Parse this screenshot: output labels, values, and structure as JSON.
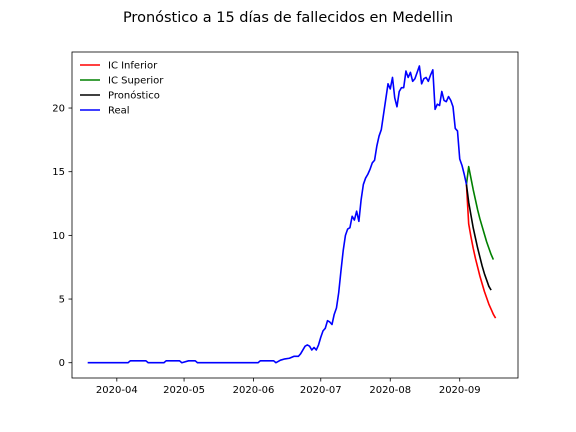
{
  "chart_data": {
    "type": "line",
    "title": "Pronóstico a 15 días de fallecidos en Medellin",
    "xlabel": "",
    "ylabel": "",
    "x_range": [
      "2020-03-12",
      "2020-09-27"
    ],
    "ylim": [
      -1.2,
      24.4
    ],
    "x_ticks": [
      {
        "date": "2020-04-01",
        "label": "2020-04"
      },
      {
        "date": "2020-05-01",
        "label": "2020-05"
      },
      {
        "date": "2020-06-01",
        "label": "2020-06"
      },
      {
        "date": "2020-07-01",
        "label": "2020-07"
      },
      {
        "date": "2020-08-01",
        "label": "2020-08"
      },
      {
        "date": "2020-09-01",
        "label": "2020-09"
      }
    ],
    "y_ticks": [
      0,
      5,
      10,
      15,
      20
    ],
    "grid": false,
    "legend_position": "upper-left",
    "series": [
      {
        "name": "IC Inferior",
        "color": "#ff0000",
        "points": [
          [
            "2020-09-04",
            14.0
          ],
          [
            "2020-09-05",
            10.9
          ],
          [
            "2020-09-06",
            9.9
          ],
          [
            "2020-09-07",
            9.0
          ],
          [
            "2020-09-08",
            8.2
          ],
          [
            "2020-09-09",
            7.5
          ],
          [
            "2020-09-10",
            6.8
          ],
          [
            "2020-09-11",
            6.2
          ],
          [
            "2020-09-12",
            5.6
          ],
          [
            "2020-09-13",
            5.1
          ],
          [
            "2020-09-14",
            4.6
          ],
          [
            "2020-09-15",
            4.2
          ],
          [
            "2020-09-16",
            3.8
          ],
          [
            "2020-09-17",
            3.5
          ]
        ]
      },
      {
        "name": "IC Superior",
        "color": "#008000",
        "points": [
          [
            "2020-09-04",
            14.0
          ],
          [
            "2020-09-05",
            15.4
          ],
          [
            "2020-09-06",
            14.5
          ],
          [
            "2020-09-07",
            13.6
          ],
          [
            "2020-09-08",
            12.8
          ],
          [
            "2020-09-09",
            12.0
          ],
          [
            "2020-09-10",
            11.3
          ],
          [
            "2020-09-11",
            10.7
          ],
          [
            "2020-09-12",
            10.1
          ],
          [
            "2020-09-13",
            9.5
          ],
          [
            "2020-09-14",
            9.0
          ],
          [
            "2020-09-15",
            8.5
          ],
          [
            "2020-09-16",
            8.1
          ]
        ]
      },
      {
        "name": "Pronóstico",
        "color": "#000000",
        "points": [
          [
            "2020-09-04",
            14.0
          ],
          [
            "2020-09-05",
            12.6
          ],
          [
            "2020-09-06",
            11.6
          ],
          [
            "2020-09-07",
            10.6
          ],
          [
            "2020-09-08",
            9.8
          ],
          [
            "2020-09-09",
            9.0
          ],
          [
            "2020-09-10",
            8.3
          ],
          [
            "2020-09-11",
            7.6
          ],
          [
            "2020-09-12",
            7.0
          ],
          [
            "2020-09-13",
            6.5
          ],
          [
            "2020-09-14",
            6.0
          ],
          [
            "2020-09-15",
            5.7
          ]
        ]
      },
      {
        "name": "Real",
        "color": "#0000ff",
        "points": [
          [
            "2020-03-19",
            0.0
          ],
          [
            "2020-03-26",
            0.0
          ],
          [
            "2020-04-02",
            0.0
          ],
          [
            "2020-04-06",
            0.0
          ],
          [
            "2020-04-07",
            0.15
          ],
          [
            "2020-04-14",
            0.15
          ],
          [
            "2020-04-15",
            0.0
          ],
          [
            "2020-04-22",
            0.0
          ],
          [
            "2020-04-23",
            0.15
          ],
          [
            "2020-04-29",
            0.15
          ],
          [
            "2020-04-30",
            0.0
          ],
          [
            "2020-05-03",
            0.15
          ],
          [
            "2020-05-06",
            0.15
          ],
          [
            "2020-05-07",
            0.0
          ],
          [
            "2020-05-14",
            0.0
          ],
          [
            "2020-05-21",
            0.0
          ],
          [
            "2020-05-28",
            0.0
          ],
          [
            "2020-06-03",
            0.0
          ],
          [
            "2020-06-04",
            0.15
          ],
          [
            "2020-06-10",
            0.15
          ],
          [
            "2020-06-11",
            0.0
          ],
          [
            "2020-06-13",
            0.2
          ],
          [
            "2020-06-15",
            0.3
          ],
          [
            "2020-06-17",
            0.35
          ],
          [
            "2020-06-19",
            0.5
          ],
          [
            "2020-06-21",
            0.5
          ],
          [
            "2020-06-22",
            0.7
          ],
          [
            "2020-06-24",
            1.3
          ],
          [
            "2020-06-25",
            1.4
          ],
          [
            "2020-06-26",
            1.3
          ],
          [
            "2020-06-27",
            1.0
          ],
          [
            "2020-06-28",
            1.2
          ],
          [
            "2020-06-29",
            1.0
          ],
          [
            "2020-06-30",
            1.4
          ],
          [
            "2020-07-01",
            2.0
          ],
          [
            "2020-07-02",
            2.5
          ],
          [
            "2020-07-03",
            2.7
          ],
          [
            "2020-07-04",
            3.3
          ],
          [
            "2020-07-05",
            3.2
          ],
          [
            "2020-07-06",
            3.0
          ],
          [
            "2020-07-07",
            3.8
          ],
          [
            "2020-07-08",
            4.3
          ],
          [
            "2020-07-09",
            5.5
          ],
          [
            "2020-07-10",
            7.2
          ],
          [
            "2020-07-11",
            8.8
          ],
          [
            "2020-07-12",
            10.0
          ],
          [
            "2020-07-13",
            10.5
          ],
          [
            "2020-07-14",
            10.6
          ],
          [
            "2020-07-15",
            11.5
          ],
          [
            "2020-07-16",
            11.2
          ],
          [
            "2020-07-17",
            11.9
          ],
          [
            "2020-07-18",
            11.1
          ],
          [
            "2020-07-19",
            12.8
          ],
          [
            "2020-07-20",
            14.0
          ],
          [
            "2020-07-21",
            14.5
          ],
          [
            "2020-07-22",
            14.8
          ],
          [
            "2020-07-23",
            15.2
          ],
          [
            "2020-07-24",
            15.7
          ],
          [
            "2020-07-25",
            15.9
          ],
          [
            "2020-07-26",
            17.0
          ],
          [
            "2020-07-27",
            17.8
          ],
          [
            "2020-07-28",
            18.3
          ],
          [
            "2020-07-29",
            19.5
          ],
          [
            "2020-07-30",
            20.7
          ],
          [
            "2020-07-31",
            21.9
          ],
          [
            "2020-08-01",
            21.5
          ],
          [
            "2020-08-02",
            22.4
          ],
          [
            "2020-08-03",
            20.8
          ],
          [
            "2020-08-04",
            20.1
          ],
          [
            "2020-08-05",
            21.3
          ],
          [
            "2020-08-06",
            21.6
          ],
          [
            "2020-08-07",
            21.6
          ],
          [
            "2020-08-08",
            22.9
          ],
          [
            "2020-08-09",
            22.4
          ],
          [
            "2020-08-10",
            22.8
          ],
          [
            "2020-08-11",
            22.1
          ],
          [
            "2020-08-12",
            22.3
          ],
          [
            "2020-08-13",
            22.8
          ],
          [
            "2020-08-14",
            23.3
          ],
          [
            "2020-08-15",
            21.9
          ],
          [
            "2020-08-16",
            22.3
          ],
          [
            "2020-08-17",
            22.4
          ],
          [
            "2020-08-18",
            22.1
          ],
          [
            "2020-08-19",
            22.6
          ],
          [
            "2020-08-20",
            23.0
          ],
          [
            "2020-08-21",
            19.9
          ],
          [
            "2020-08-22",
            20.3
          ],
          [
            "2020-08-23",
            20.2
          ],
          [
            "2020-08-24",
            21.3
          ],
          [
            "2020-08-25",
            20.6
          ],
          [
            "2020-08-26",
            20.5
          ],
          [
            "2020-08-27",
            20.9
          ],
          [
            "2020-08-28",
            20.6
          ],
          [
            "2020-08-29",
            20.1
          ],
          [
            "2020-08-30",
            18.4
          ],
          [
            "2020-08-31",
            18.2
          ],
          [
            "2020-09-01",
            16.0
          ],
          [
            "2020-09-02",
            15.5
          ],
          [
            "2020-09-03",
            14.8
          ],
          [
            "2020-09-04",
            14.0
          ]
        ]
      }
    ]
  }
}
